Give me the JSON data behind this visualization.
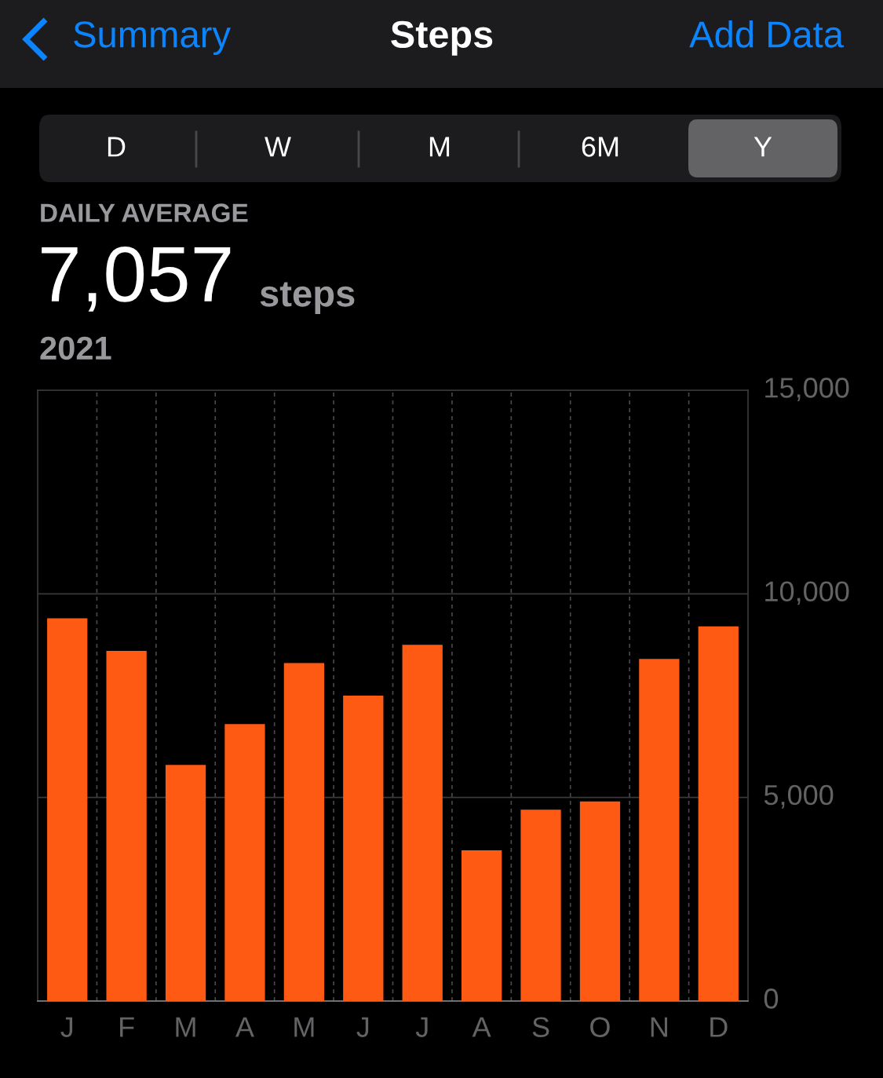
{
  "chart_data": {
    "type": "bar",
    "title": "Steps",
    "annotations": [
      "Summary",
      "Add Data",
      "D",
      "W",
      "M",
      "6M",
      "Y",
      "DAILY AVERAGE",
      "7,057",
      "steps",
      "2021"
    ],
    "categories": [
      "J",
      "F",
      "M",
      "A",
      "M",
      "J",
      "J",
      "A",
      "S",
      "O",
      "N",
      "D"
    ],
    "values": [
      9400,
      8600,
      5800,
      6800,
      8300,
      7500,
      8750,
      3700,
      4700,
      4900,
      8400,
      9200
    ],
    "color": "#fe5a14",
    "ylim": [
      0,
      15000
    ],
    "yticks": [
      {
        "value": 0,
        "label": "0"
      },
      {
        "value": 5000,
        "label": "5,000"
      },
      {
        "value": 10000,
        "label": "10,000"
      },
      {
        "value": 15000,
        "label": "15,000"
      }
    ],
    "grid": true
  }
}
